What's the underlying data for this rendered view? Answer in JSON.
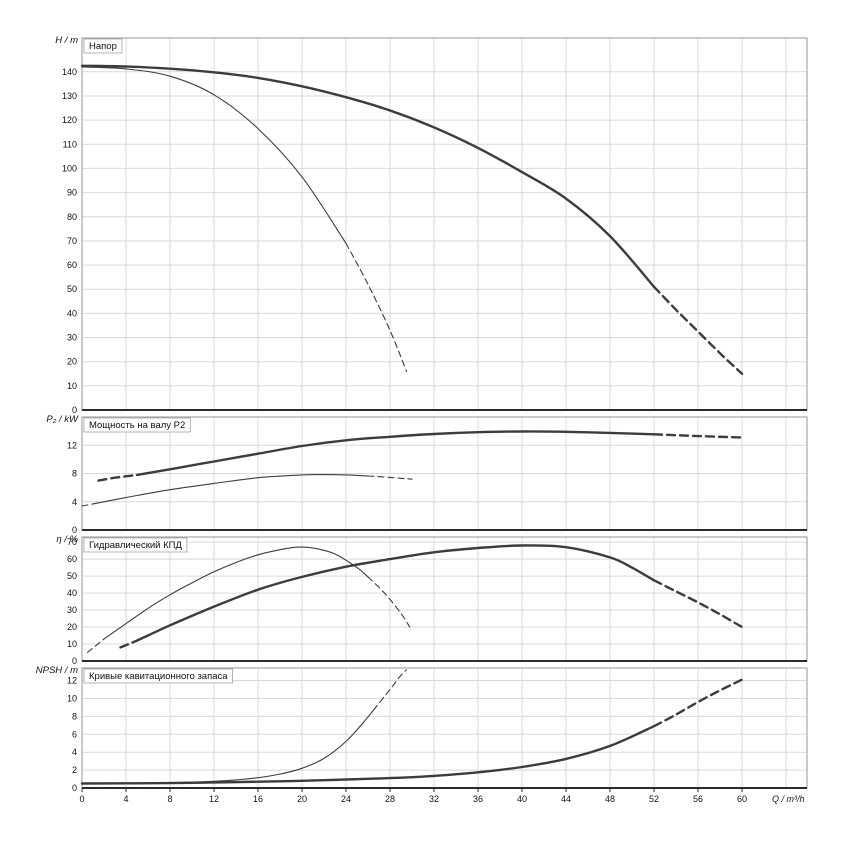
{
  "colors": {
    "curve": "#3c3c3c",
    "grid": "#d9d9d9",
    "frame": "#969696",
    "axis": "#2b2b2b",
    "text": "#111111",
    "title_box_border": "#b4b4b4",
    "background": "#ffffff"
  },
  "x_axis": {
    "label": "Q / m³/h",
    "min": 0,
    "max": 60,
    "ticks": [
      0,
      4,
      8,
      12,
      16,
      20,
      24,
      28,
      32,
      36,
      40,
      44,
      48,
      52,
      56,
      60
    ],
    "grid_extra_ticks": [
      64
    ]
  },
  "chart_data": {
    "type": "line",
    "x_label": "Q / m³/h",
    "panels": [
      {
        "id": "head",
        "title": "Напор",
        "unit_label": "H / m",
        "y_min": 0,
        "y_max": 154,
        "y_ticks": [
          0,
          10,
          20,
          30,
          40,
          50,
          60,
          70,
          80,
          90,
          100,
          110,
          120,
          130,
          140
        ],
        "series": [
          {
            "name": "head-curve-thick",
            "thickness": "thick",
            "segments": [
              {
                "dash": false,
                "points": [
                  [
                    0,
                    142.5
                  ],
                  [
                    4,
                    142.2
                  ],
                  [
                    8,
                    141.3
                  ],
                  [
                    12,
                    139.8
                  ],
                  [
                    16,
                    137.5
                  ],
                  [
                    20,
                    134
                  ],
                  [
                    24,
                    129.5
                  ],
                  [
                    28,
                    124
                  ],
                  [
                    32,
                    117
                  ],
                  [
                    36,
                    108.5
                  ],
                  [
                    40,
                    98.5
                  ],
                  [
                    44,
                    87.5
                  ],
                  [
                    48,
                    72
                  ],
                  [
                    52,
                    51
                  ]
                ]
              },
              {
                "dash": true,
                "points": [
                  [
                    52,
                    51
                  ],
                  [
                    54,
                    41.5
                  ],
                  [
                    56,
                    32.5
                  ],
                  [
                    58,
                    23.5
                  ],
                  [
                    60,
                    15
                  ]
                ]
              }
            ]
          },
          {
            "name": "head-curve-thin",
            "thickness": "thin",
            "segments": [
              {
                "dash": false,
                "points": [
                  [
                    0,
                    142
                  ],
                  [
                    4,
                    141.2
                  ],
                  [
                    8,
                    138.2
                  ],
                  [
                    12,
                    130.5
                  ],
                  [
                    16,
                    116.5
                  ],
                  [
                    20,
                    96.5
                  ],
                  [
                    24,
                    69
                  ]
                ]
              },
              {
                "dash": true,
                "points": [
                  [
                    24,
                    69
                  ],
                  [
                    26,
                    52
                  ],
                  [
                    28,
                    33
                  ],
                  [
                    29.5,
                    16
                  ]
                ]
              }
            ]
          }
        ]
      },
      {
        "id": "power",
        "title": "Мощность на валу P2",
        "unit_label": "P₂ / kW",
        "y_min": 0,
        "y_max": 16,
        "y_ticks": [
          0,
          4,
          8,
          12
        ],
        "series": [
          {
            "name": "power-curve-thick",
            "thickness": "thick",
            "segments": [
              {
                "dash": true,
                "points": [
                  [
                    1.5,
                    7.0
                  ],
                  [
                    3,
                    7.4
                  ],
                  [
                    5,
                    7.8
                  ]
                ]
              },
              {
                "dash": false,
                "points": [
                  [
                    5,
                    7.8
                  ],
                  [
                    8,
                    8.6
                  ],
                  [
                    12,
                    9.7
                  ],
                  [
                    16,
                    10.8
                  ],
                  [
                    20,
                    11.9
                  ],
                  [
                    24,
                    12.7
                  ],
                  [
                    28,
                    13.2
                  ],
                  [
                    32,
                    13.6
                  ],
                  [
                    36,
                    13.85
                  ],
                  [
                    40,
                    13.95
                  ],
                  [
                    44,
                    13.9
                  ],
                  [
                    48,
                    13.75
                  ],
                  [
                    52,
                    13.55
                  ]
                ]
              },
              {
                "dash": true,
                "points": [
                  [
                    52,
                    13.55
                  ],
                  [
                    56,
                    13.3
                  ],
                  [
                    60,
                    13.1
                  ]
                ]
              }
            ]
          },
          {
            "name": "power-curve-thin",
            "thickness": "thin",
            "segments": [
              {
                "dash": true,
                "points": [
                  [
                    0,
                    3.4
                  ],
                  [
                    1,
                    3.7
                  ]
                ]
              },
              {
                "dash": false,
                "points": [
                  [
                    1,
                    3.7
                  ],
                  [
                    4,
                    4.6
                  ],
                  [
                    8,
                    5.7
                  ],
                  [
                    12,
                    6.6
                  ],
                  [
                    16,
                    7.4
                  ],
                  [
                    20,
                    7.8
                  ],
                  [
                    22,
                    7.85
                  ],
                  [
                    24,
                    7.8
                  ],
                  [
                    26,
                    7.65
                  ]
                ]
              },
              {
                "dash": true,
                "points": [
                  [
                    26,
                    7.65
                  ],
                  [
                    28,
                    7.45
                  ],
                  [
                    30,
                    7.2
                  ]
                ]
              }
            ]
          }
        ]
      },
      {
        "id": "efficiency",
        "title": "Гидравлический КПД",
        "unit_label": "η / %",
        "y_min": 0,
        "y_max": 73,
        "y_ticks": [
          0,
          10,
          20,
          30,
          40,
          50,
          60,
          70
        ],
        "series": [
          {
            "name": "efficiency-curve-thick",
            "thickness": "thick",
            "segments": [
              {
                "dash": true,
                "points": [
                  [
                    3.5,
                    8
                  ],
                  [
                    5,
                    12
                  ]
                ]
              },
              {
                "dash": false,
                "points": [
                  [
                    5,
                    12
                  ],
                  [
                    8,
                    21
                  ],
                  [
                    12,
                    32
                  ],
                  [
                    16,
                    42
                  ],
                  [
                    20,
                    49.5
                  ],
                  [
                    24,
                    55.5
                  ],
                  [
                    28,
                    60
                  ],
                  [
                    32,
                    64
                  ],
                  [
                    36,
                    66.5
                  ],
                  [
                    40,
                    68
                  ],
                  [
                    44,
                    67
                  ],
                  [
                    48,
                    61
                  ],
                  [
                    50,
                    55
                  ],
                  [
                    52,
                    47.5
                  ]
                ]
              },
              {
                "dash": true,
                "points": [
                  [
                    52,
                    47.5
                  ],
                  [
                    54,
                    41
                  ],
                  [
                    56,
                    34.5
                  ],
                  [
                    58,
                    27.5
                  ],
                  [
                    60,
                    20
                  ]
                ]
              }
            ]
          },
          {
            "name": "efficiency-curve-thin",
            "thickness": "thin",
            "segments": [
              {
                "dash": true,
                "points": [
                  [
                    0.5,
                    5
                  ],
                  [
                    2,
                    13
                  ]
                ]
              },
              {
                "dash": false,
                "points": [
                  [
                    2,
                    13
                  ],
                  [
                    4,
                    22
                  ],
                  [
                    6,
                    31
                  ],
                  [
                    8,
                    39
                  ],
                  [
                    10,
                    46
                  ],
                  [
                    12,
                    52.5
                  ],
                  [
                    14,
                    58
                  ],
                  [
                    16,
                    62.5
                  ],
                  [
                    18,
                    65.5
                  ],
                  [
                    19.5,
                    67
                  ],
                  [
                    21,
                    66.5
                  ],
                  [
                    23,
                    63
                  ],
                  [
                    25,
                    55
                  ],
                  [
                    26,
                    49.5
                  ]
                ]
              },
              {
                "dash": true,
                "points": [
                  [
                    26,
                    49.5
                  ],
                  [
                    27.5,
                    40
                  ],
                  [
                    29,
                    28
                  ],
                  [
                    29.8,
                    20
                  ]
                ]
              }
            ]
          }
        ]
      },
      {
        "id": "npsh",
        "title": "Кривые кавитационного запаса",
        "unit_label": "NPSH / m",
        "y_min": 0,
        "y_max": 13.4,
        "y_ticks": [
          0,
          2,
          4,
          6,
          8,
          10,
          12
        ],
        "series": [
          {
            "name": "npsh-curve-thick",
            "thickness": "thick",
            "segments": [
              {
                "dash": false,
                "points": [
                  [
                    0,
                    0.5
                  ],
                  [
                    8,
                    0.55
                  ],
                  [
                    16,
                    0.7
                  ],
                  [
                    20,
                    0.8
                  ],
                  [
                    24,
                    0.95
                  ],
                  [
                    28,
                    1.1
                  ],
                  [
                    32,
                    1.35
                  ],
                  [
                    36,
                    1.75
                  ],
                  [
                    40,
                    2.35
                  ],
                  [
                    44,
                    3.25
                  ],
                  [
                    48,
                    4.7
                  ],
                  [
                    52,
                    6.9
                  ]
                ]
              },
              {
                "dash": true,
                "points": [
                  [
                    52,
                    6.9
                  ],
                  [
                    54,
                    8.2
                  ],
                  [
                    56,
                    9.6
                  ],
                  [
                    58,
                    10.9
                  ],
                  [
                    60,
                    12.1
                  ]
                ]
              }
            ]
          },
          {
            "name": "npsh-curve-thin",
            "thickness": "thin",
            "segments": [
              {
                "dash": false,
                "points": [
                  [
                    0,
                    0.5
                  ],
                  [
                    8,
                    0.6
                  ],
                  [
                    12,
                    0.75
                  ],
                  [
                    14,
                    0.9
                  ],
                  [
                    16,
                    1.15
                  ],
                  [
                    18,
                    1.55
                  ],
                  [
                    20,
                    2.2
                  ],
                  [
                    22,
                    3.3
                  ],
                  [
                    24,
                    5.2
                  ],
                  [
                    25.5,
                    7.2
                  ],
                  [
                    26.5,
                    8.7
                  ]
                ]
              },
              {
                "dash": true,
                "points": [
                  [
                    26.5,
                    8.7
                  ],
                  [
                    28,
                    11
                  ],
                  [
                    29,
                    12.6
                  ],
                  [
                    29.5,
                    13.2
                  ]
                ]
              }
            ]
          }
        ]
      }
    ]
  }
}
